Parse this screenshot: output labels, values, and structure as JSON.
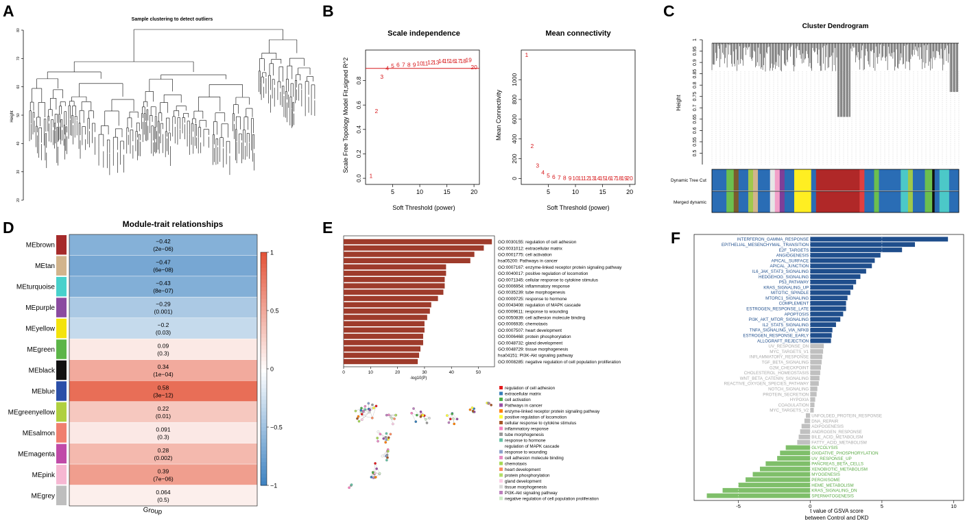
{
  "panel_labels": [
    "A",
    "B",
    "C",
    "D",
    "E",
    "F"
  ],
  "colors": {
    "red": "#d7191c",
    "brown": "#9e3b2b",
    "blue_bar": "#1f4e8c",
    "gray_bar": "#c0c0c0",
    "green_bar": "#7fbf6a",
    "heat_neg": "#3a80c0",
    "heat_pos": "#e4553a"
  },
  "chart_data": [
    {
      "id": "A",
      "type": "dendrogram",
      "title": "Sample clustering to detect outliers",
      "ylabel": "Height",
      "ylim": [
        20,
        80
      ],
      "yticks": [
        20,
        30,
        40,
        50,
        60,
        70,
        80
      ]
    },
    {
      "id": "B1",
      "type": "scatter",
      "title": "Scale independence",
      "xlabel": "Soft Threshold (power)",
      "ylabel": "Scale Free Topology Model Fit,signed R^2",
      "xlim": [
        0,
        21
      ],
      "ylim": [
        -0.05,
        1.05
      ],
      "xticks": [
        5,
        10,
        15,
        20
      ],
      "yticks": [
        0.0,
        0.2,
        0.4,
        0.6,
        0.8
      ],
      "hline": 0.9,
      "x": [
        1,
        2,
        3,
        4,
        5,
        6,
        7,
        8,
        9,
        10,
        11,
        12,
        13,
        14,
        15,
        16,
        17,
        18,
        19,
        20
      ],
      "y": [
        0.02,
        0.55,
        0.83,
        0.9,
        0.92,
        0.93,
        0.93,
        0.93,
        0.93,
        0.94,
        0.94,
        0.95,
        0.95,
        0.96,
        0.96,
        0.96,
        0.96,
        0.96,
        0.97,
        0.91
      ],
      "labels": [
        "1",
        "2",
        "3",
        "4",
        "5",
        "6",
        "7",
        "8",
        "9",
        "10",
        "11",
        "12",
        "13",
        "14",
        "15",
        "16",
        "17",
        "18",
        "19",
        "20"
      ]
    },
    {
      "id": "B2",
      "type": "scatter",
      "title": "Mean connectivity",
      "xlabel": "Soft Threshold (power)",
      "ylabel": "Mean Connectivity",
      "xlim": [
        0,
        21
      ],
      "ylim": [
        -60,
        1300
      ],
      "xticks": [
        5,
        10,
        15,
        20
      ],
      "yticks": [
        0,
        200,
        400,
        600,
        800,
        1000
      ],
      "x": [
        1,
        2,
        3,
        4,
        5,
        6,
        7,
        8,
        9,
        10,
        11,
        12,
        13,
        14,
        15,
        16,
        17,
        18,
        19,
        20
      ],
      "y": [
        1250,
        330,
        130,
        60,
        30,
        15,
        9,
        6,
        4,
        3,
        2,
        2,
        1,
        1,
        1,
        1,
        1,
        1,
        1,
        1
      ],
      "labels": [
        "1",
        "2",
        "3",
        "4",
        "5",
        "6",
        "7",
        "8",
        "9",
        "10",
        "11",
        "12",
        "13",
        "14",
        "15",
        "16",
        "17",
        "18",
        "19",
        "20"
      ]
    },
    {
      "id": "C",
      "type": "dendrogram",
      "title": "Cluster Dendrogram",
      "ylabel": "Height",
      "ylim": [
        0.45,
        1.0
      ],
      "yticks": [
        0.5,
        0.55,
        0.6,
        0.65,
        0.7,
        0.75,
        0.8,
        0.85,
        0.9,
        0.95,
        1.0
      ],
      "color_rows": [
        "Dynamic Tree Cut",
        "Merged dynamic"
      ],
      "module_blocks": [
        {
          "color": "#2a6db5",
          "w": 6
        },
        {
          "color": "#6cbf4f",
          "w": 3
        },
        {
          "color": "#7a5c2e",
          "w": 2
        },
        {
          "color": "#2a6db5",
          "w": 4
        },
        {
          "color": "#a0c84c",
          "w": 2
        },
        {
          "color": "#d2b48c",
          "w": 2
        },
        {
          "color": "#2a6db5",
          "w": 5
        },
        {
          "color": "#e6e6e6",
          "w": 2
        },
        {
          "color": "#f2a0c8",
          "w": 2
        },
        {
          "color": "#7d3f98",
          "w": 2
        },
        {
          "color": "#2a6db5",
          "w": 4
        },
        {
          "color": "#ffee22",
          "w": 7
        },
        {
          "color": "#2a6db5",
          "w": 2
        },
        {
          "color": "#b02828",
          "w": 18
        },
        {
          "color": "#e04040",
          "w": 2
        },
        {
          "color": "#2a6db5",
          "w": 4
        },
        {
          "color": "#6cbf4f",
          "w": 2
        },
        {
          "color": "#2a6db5",
          "w": 9
        },
        {
          "color": "#4cc8c8",
          "w": 3
        },
        {
          "color": "#a0c84c",
          "w": 2
        },
        {
          "color": "#2a6db5",
          "w": 5
        },
        {
          "color": "#6cbf4f",
          "w": 3
        },
        {
          "color": "#111111",
          "w": 1
        },
        {
          "color": "#2a6db5",
          "w": 2
        },
        {
          "color": "#4cc8c8",
          "w": 4
        },
        {
          "color": "#2a6db5",
          "w": 4
        }
      ]
    },
    {
      "id": "D",
      "type": "heatmap",
      "title": "Module-trait relationships",
      "xlabel": "Group",
      "legend_ticks": [
        1,
        0.5,
        0,
        -0.5,
        -1
      ],
      "legend_tick_labels": [
        "1",
        "0.5",
        "0",
        "−0.5",
        "−1"
      ],
      "rows": [
        {
          "module": "MEbrown",
          "color": "#a52a2a",
          "value": -0.42,
          "label": "−0.42",
          "p": "(2e−06)"
        },
        {
          "module": "MEtan",
          "color": "#d2b48c",
          "value": -0.47,
          "label": "−0.47",
          "p": "(6e−08)"
        },
        {
          "module": "MEturquoise",
          "color": "#48d1cc",
          "value": -0.43,
          "label": "−0.43",
          "p": "(8e−07)"
        },
        {
          "module": "MEpurple",
          "color": "#8b4ba0",
          "value": -0.29,
          "label": "−0.29",
          "p": "(0.001)"
        },
        {
          "module": "MEyellow",
          "color": "#f4e30c",
          "value": -0.2,
          "label": "−0.2",
          "p": "(0.03)"
        },
        {
          "module": "MEgreen",
          "color": "#5cb548",
          "value": 0.09,
          "label": "0.09",
          "p": "(0.3)"
        },
        {
          "module": "MEblack",
          "color": "#111111",
          "value": 0.34,
          "label": "0.34",
          "p": "(1e−04)"
        },
        {
          "module": "MEblue",
          "color": "#2b4fa8",
          "value": 0.58,
          "label": "0.58",
          "p": "(3e−12)"
        },
        {
          "module": "MEgreenyellow",
          "color": "#b0d040",
          "value": 0.22,
          "label": "0.22",
          "p": "(0.01)"
        },
        {
          "module": "MEsalmon",
          "color": "#f07f6f",
          "value": 0.091,
          "label": "0.091",
          "p": "(0.3)"
        },
        {
          "module": "MEmagenta",
          "color": "#c04aa8",
          "value": 0.28,
          "label": "0.28",
          "p": "(0.002)"
        },
        {
          "module": "MEpink",
          "color": "#f6b7d2",
          "value": 0.39,
          "label": "0.39",
          "p": "(7e−06)"
        },
        {
          "module": "MEgrey",
          "color": "#bebebe",
          "value": 0.064,
          "label": "0.064",
          "p": "(0.5)"
        }
      ]
    },
    {
      "id": "E",
      "type": "bar",
      "orientation": "horizontal",
      "xlabel": "-log10(P)",
      "xlim": [
        0,
        58
      ],
      "xticks": [
        0,
        10,
        20,
        30,
        40,
        50
      ],
      "categories": [
        "GO:0030155: regulation of cell adhesion",
        "GO:0031012: extracellular matrix",
        "GO:0001775: cell activation",
        "hsa05200: Pathways in cancer",
        "GO:0007167: enzyme-linked receptor protein signaling pathway",
        "GO:0040017: positive regulation of locomotion",
        "GO:0071345: cellular response to cytokine stimulus",
        "GO:0006954: inflammatory response",
        "GO:0035239: tube morphogenesis",
        "GO:0009725: response to hormone",
        "GO:0043408: regulation of MAPK cascade",
        "GO:0009611: response to wounding",
        "GO:0050839: cell adhesion molecule binding",
        "GO:0006935: chemotaxis",
        "GO:0007507: heart development",
        "GO:0006468: protein phosphorylation",
        "GO:0048732: gland development",
        "GO:0048729: tissue morphogenesis",
        "hsa04151: PI3K-Akt signaling pathway",
        "GO:0008285: negative regulation of cell population proliferation"
      ],
      "values": [
        55,
        52,
        48.5,
        47,
        38,
        38,
        37.5,
        37.5,
        37,
        35,
        32.5,
        32,
        31,
        30,
        30,
        29.5,
        29.5,
        28.5,
        28,
        27.5
      ],
      "network_legend": [
        {
          "label": "regulation of cell adhesion",
          "color": "#e41a1c"
        },
        {
          "label": "extracellular matrix",
          "color": "#377eb8"
        },
        {
          "label": "cell activation",
          "color": "#4daf4a"
        },
        {
          "label": "Pathways in cancer",
          "color": "#984ea3"
        },
        {
          "label": "enzyme-linked receptor protein signaling pathway",
          "color": "#ff7f00"
        },
        {
          "label": "positive regulation of locomotion",
          "color": "#ffff33"
        },
        {
          "label": "cellular response to cytokine stimulus",
          "color": "#a65628"
        },
        {
          "label": "inflammatory response",
          "color": "#f781bf"
        },
        {
          "label": "tube morphogenesis",
          "color": "#999999"
        },
        {
          "label": "response to hormone",
          "color": "#66c2a5"
        },
        {
          "label": "regulation of MAPK cascade",
          "color": "#ffffff"
        },
        {
          "label": "response to wounding",
          "color": "#8da0cb"
        },
        {
          "label": "cell adhesion molecule binding",
          "color": "#e78ac3"
        },
        {
          "label": "chemotaxis",
          "color": "#a6d854"
        },
        {
          "label": "heart development",
          "color": "#fc8d62"
        },
        {
          "label": "protein phosphorylation",
          "color": "#b3de69"
        },
        {
          "label": "gland development",
          "color": "#fccde5"
        },
        {
          "label": "tissue morphogenesis",
          "color": "#d9d9d9"
        },
        {
          "label": "PI3K-Akt signaling pathway",
          "color": "#bc80bd"
        },
        {
          "label": "negative regulation of cell population proliferation",
          "color": "#ccebc5"
        }
      ]
    },
    {
      "id": "F",
      "type": "bar",
      "orientation": "horizontal",
      "xlabel": "t value of GSVA score",
      "xlabel2": "between Control and DKD",
      "xlim": [
        -7.8,
        10.5
      ],
      "xticks": [
        -5,
        0,
        5,
        10
      ],
      "xtick_labels": [
        "-5",
        "0",
        "5",
        "10"
      ],
      "categories": [
        "INTERFERON_GAMMA_RESPONSE",
        "EPITHELIAL_MESENCHYMAL_TRANSITION",
        "E2F_TARGETS",
        "ANGIOGENESIS",
        "APICAL_SURFACE",
        "APICAL_JUNCTION",
        "IL6_JAK_STAT3_SIGNALING",
        "HEDGEHOG_SIGNALING",
        "P53_PATHWAY",
        "KRAS_SIGNALING_UP",
        "MITOTIC_SPINDLE",
        "MTORC1_SIGNALING",
        "COMPLEMENT",
        "ESTROGEN_RESPONSE_LATE",
        "APOPTOSIS",
        "PI3K_AKT_MTOR_SIGNALING",
        "IL2_STAT5_SIGNALING",
        "TNFA_SIGNALING_VIA_NFKB",
        "ESTROGEN_RESPONSE_EARLY",
        "ALLOGRAFT_REJECTION",
        "UV_RESPONSE_DN",
        "MYC_TARGETS_V1",
        "INFLAMMATORY_RESPONSE",
        "TGF_BETA_SIGNALING",
        "G2M_CHECKPOINT",
        "CHOLESTEROL_HOMEOSTASIS",
        "WNT_BETA_CATENIN_SIGNALING",
        "REACTIVE_OXYGEN_SPECIES_PATHWAY",
        "NOTCH_SIGNALING",
        "PROTEIN_SECRETION",
        "HYPOXIA",
        "COAGULATION",
        "MYC_TARGETS_V2",
        "UNFOLDED_PROTEIN_RESPONSE",
        "DNA_REPAIR",
        "ADIPOGENESIS",
        "ANDROGEN_RESPONSE",
        "BILE_ACID_METABOLISM",
        "FATTY_ACID_METABOLISM",
        "GLYCOLYSIS",
        "OXIDATIVE_PHOSPHORYLATION",
        "UV_RESPONSE_UP",
        "PANCREAS_BETA_CELLS",
        "XENOBIOTIC_METABOLISM",
        "MYOGENESIS",
        "PEROXISOME",
        "HEME_METABOLISM",
        "KRAS_SIGNALING_DN",
        "SPERMATOGENESIS"
      ],
      "values": [
        9.6,
        7.3,
        6.4,
        4.9,
        4.5,
        4.3,
        3.9,
        3.5,
        3.2,
        3.0,
        2.8,
        2.6,
        2.5,
        2.5,
        2.3,
        2.1,
        1.8,
        1.55,
        1.5,
        1.45,
        0.95,
        0.9,
        0.85,
        0.8,
        0.75,
        0.7,
        0.65,
        0.6,
        0.5,
        0.45,
        0.35,
        0.3,
        0.25,
        -0.3,
        -0.4,
        -0.6,
        -0.7,
        -0.8,
        -0.9,
        -1.7,
        -2.1,
        -2.3,
        -3.1,
        -3.5,
        -4.0,
        -4.5,
        -5.0,
        -6.1,
        -7.2
      ]
    }
  ]
}
